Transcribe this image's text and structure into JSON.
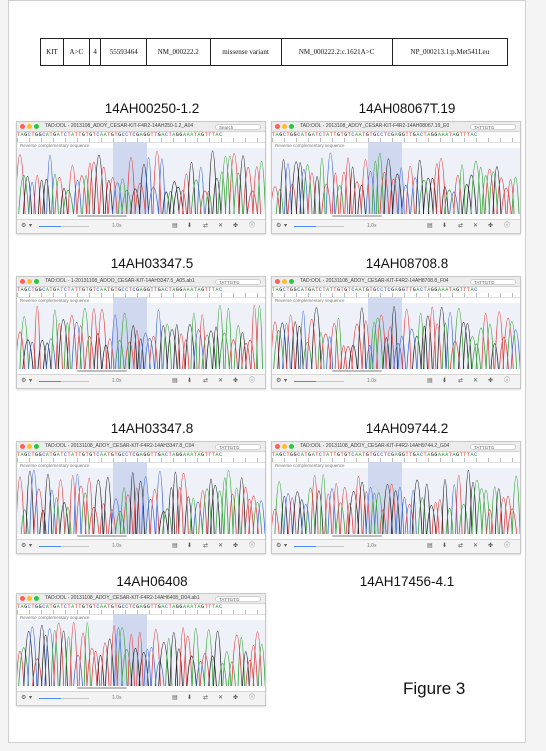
{
  "variant_table": [
    "KIT",
    "A>C",
    "4",
    "55593464",
    "NM_000222.2",
    "missense variant",
    "NM_000222.2:c.1621A>C",
    "NP_000213.1:p.Met541Leu"
  ],
  "figure_label": "Figure 3",
  "seq_letters": "TAGCTGGCATGATCTATTGTGTCAATGTGCCTCGAGGTTGACTAGGAAATAGTTTAC",
  "seq_colors": {
    "A": "#2e9b2e",
    "C": "#2a4fc9",
    "G": "#111111",
    "T": "#d23232"
  },
  "trace_colors": {
    "A": "#35a335",
    "C": "#3f69d6",
    "G": "#222222",
    "T": "#e03c3c"
  },
  "highlight_color": "#c9d4ec",
  "reverse_label": "Reverse complementary sequence",
  "zoom_text": "1.0x",
  "empty_label": "14AH17456-4.1",
  "panels": [
    {
      "label": "14AH00250-1.2",
      "title": "TAD:OOL - 2013108_ADOY_CESAR-KIT-F4R2-14AH250-1.2_A04",
      "search": "Search"
    },
    {
      "label": "14AH08067T.19",
      "title": "TAD:OOL - 2013108_ADOY_CESAR-KIT-F4R2-14AH08067.19_E0",
      "search": "TATTGTG"
    },
    {
      "label": "14AH03347.5",
      "title": "TAD:OOL - 1-20131108_ADOO_CESAR-KIT-14AH3347.5_A05.ab1",
      "search": "TATTGTG"
    },
    {
      "label": "14AH08708.8",
      "title": "TAD:OOL - 20131108_ADOY_CESAR-KIT-F4R2-14AH8708.8_F04",
      "search": "TATTGTG"
    },
    {
      "label": "14AH03347.8",
      "title": "TAD:OOL - 20131108_ADOY_CESAR-KIT-F4R2-14AH3347.8_C04",
      "search": "TATTGTG"
    },
    {
      "label": "14AH09744.2",
      "title": "TAD:OOL - 20131108_ADOY_CESAR-KIT-F4R2-14AH9744.2_G04",
      "search": "TATTGTG"
    },
    {
      "label": "14AH06408",
      "title": "TAD:OOL - 20131108_ADOY_CESAR-KIT-F4R2-14AH6408_D04.ab1",
      "search": "TATTGTG"
    }
  ]
}
